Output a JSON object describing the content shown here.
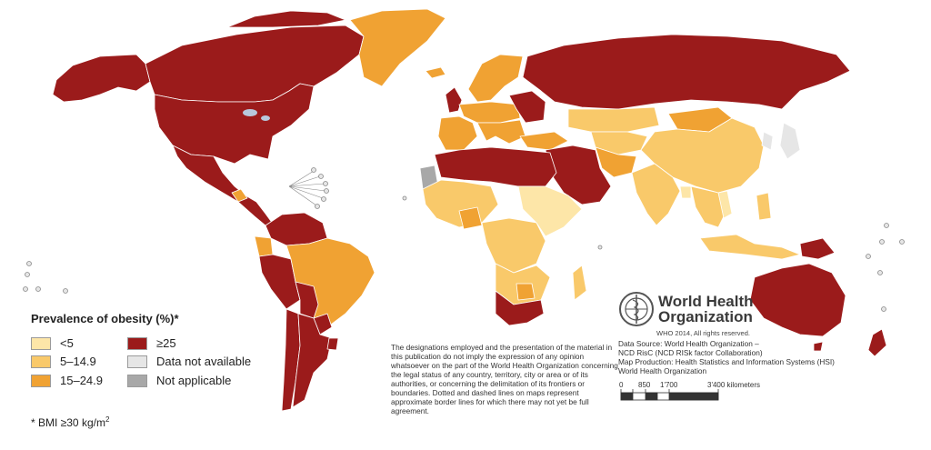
{
  "legend": {
    "title": "Prevalence of obesity (%)*",
    "items": [
      {
        "label": "<5",
        "color": "#fde6a8"
      },
      {
        "label": "5–14.9",
        "color": "#f9c96a"
      },
      {
        "label": "15–24.9",
        "color": "#f0a233"
      },
      {
        "label": "≥25",
        "color": "#9b1b1b"
      },
      {
        "label": "Data not available",
        "color": "#e6e6e6"
      },
      {
        "label": "Not applicable",
        "color": "#a8a8a8"
      }
    ]
  },
  "footnote": "* BMI ≥30 kg/m",
  "footnote_sup": "2",
  "disclaimer": "The designations employed and the presentation of the material in this publication do not imply the expression of any opinion whatsoever on the part of the World Health Organization concerning the legal status of any country, territory, city or area or of its authorities, or concerning the delimitation of its frontiers or boundaries. Dotted and dashed lines on maps represent approximate border lines for which there may not yet be full agreement.",
  "who": {
    "name_line1": "World Health",
    "name_line2": "Organization",
    "copyright": "WHO 2014, All rights reserved."
  },
  "credits": {
    "line1": "Data Source: World Health Organization –",
    "line2": "NCD RisC (NCD RISk factor Collaboration)",
    "line3": "Map Production: Health Statistics and Information Systems (HSI)",
    "line4": "World Health Organization"
  },
  "scale": {
    "tick0": "0",
    "tick1": "850",
    "tick2": "1'700",
    "tick3": "3'400 kilometers"
  },
  "colors": {
    "lt5": "#fde6a8",
    "c5_15": "#f9c96a",
    "c15_25": "#f0a233",
    "ge25": "#9b1b1b",
    "na": "#e6e6e6",
    "notapp": "#a8a8a8",
    "water": "#b8c8dc"
  }
}
